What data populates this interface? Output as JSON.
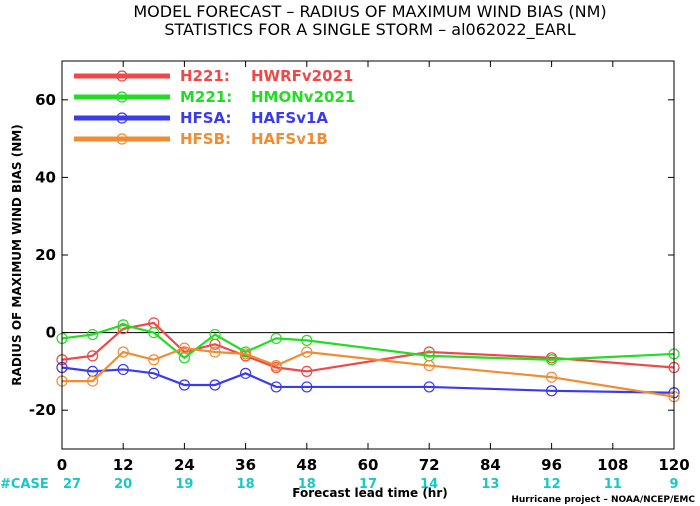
{
  "chart_data": {
    "type": "line",
    "title": "MODEL FORECAST – RADIUS OF MAXIMUM WIND BIAS (NM)",
    "subtitle": "STATISTICS FOR A SINGLE STORM – al062022_EARL",
    "xlabel": "Forecast lead time (hr)",
    "ylabel": "RADIUS OF MAXIMUM WIND BIAS (NM)",
    "xlim": [
      0,
      120
    ],
    "ylim": [
      -30,
      70
    ],
    "xticks": [
      0,
      12,
      24,
      36,
      48,
      60,
      72,
      84,
      96,
      108,
      120
    ],
    "yticks": [
      -20,
      0,
      20,
      40,
      60
    ],
    "zero_line": true,
    "legend_position": "top-left",
    "case_label": "#CASE",
    "case_counts": [
      27,
      20,
      19,
      18,
      18,
      17,
      14,
      13,
      12,
      11,
      9
    ],
    "credit": "Hurricane project – NOAA/NCEP/EMC",
    "series": [
      {
        "name": "H221:",
        "label": "HWRFv2021",
        "color": "#f04848",
        "x": [
          0,
          6,
          12,
          18,
          24,
          30,
          36,
          42,
          48,
          72,
          96,
          120
        ],
        "y": [
          -7,
          -6,
          1,
          2.5,
          -5,
          -3,
          -6,
          -9,
          -10,
          -5,
          -6.5,
          -9
        ]
      },
      {
        "name": "M221:",
        "label": "HMONv2021",
        "color": "#22dd22",
        "x": [
          0,
          6,
          12,
          18,
          24,
          30,
          36,
          42,
          48,
          72,
          96,
          120
        ],
        "y": [
          -1.5,
          -0.5,
          2,
          0,
          -6.5,
          -0.5,
          -5,
          -1.5,
          -2,
          -6,
          -7,
          -5.5
        ]
      },
      {
        "name": "HFSA:",
        "label": "HAFSv1A",
        "color": "#3a3aee",
        "x": [
          0,
          6,
          12,
          18,
          24,
          30,
          36,
          42,
          48,
          72,
          96,
          120
        ],
        "y": [
          -9,
          -10,
          -9.5,
          -10.5,
          -13.5,
          -13.5,
          -10.5,
          -14,
          -14,
          -14,
          -15,
          -15.5
        ]
      },
      {
        "name": "HFSB:",
        "label": "HAFSv1B",
        "color": "#f08c32",
        "x": [
          0,
          6,
          12,
          18,
          24,
          30,
          36,
          42,
          48,
          72,
          96,
          120
        ],
        "y": [
          -12.5,
          -12.5,
          -5,
          -7,
          -4,
          -5,
          -5.5,
          -8.5,
          -5,
          -8.5,
          -11.5,
          -16.5
        ]
      }
    ]
  }
}
